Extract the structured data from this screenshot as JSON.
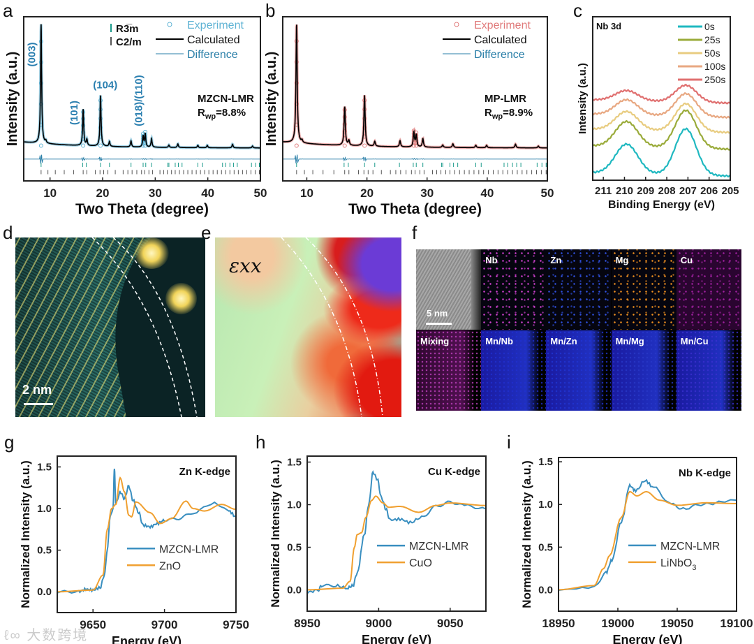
{
  "panel_letters": {
    "a": "a",
    "b": "b",
    "c": "c",
    "d": "d",
    "e": "e",
    "f": "f",
    "g": "g",
    "h": "h",
    "i": "i"
  },
  "colors": {
    "experiment_a": "#5fb3d4",
    "experiment_b": "#e07a7a",
    "calculated": "#000000",
    "difference": "#2a7fa8",
    "r3m_tick": "#1a9a8a",
    "c2m_tick": "#555555",
    "xas_sample": "#3a8fc0",
    "xas_ref": "#f0a030"
  },
  "panel_d": {
    "scale_label": "2 nm"
  },
  "panel_e": {
    "label": "εxx"
  },
  "panel_f": {
    "scale_label": "5 nm",
    "tiles": [
      {
        "label": ""
      },
      {
        "label": "Nb",
        "color": "#d040d0"
      },
      {
        "label": "Zn",
        "color": "#3050e0"
      },
      {
        "label": "Mg",
        "color": "#f09020"
      },
      {
        "label": "Cu",
        "color": "#a020a0"
      },
      {
        "label": "Mixing",
        "color": "#c040c0"
      },
      {
        "label": "Mn/Nb",
        "color": "#2030d0"
      },
      {
        "label": "Mn/Zn",
        "color": "#2035d5"
      },
      {
        "label": "Mn/Mg",
        "color": "#2838c8"
      },
      {
        "label": "Mn/Cu",
        "color": "#3a30d0"
      }
    ]
  },
  "watermark": "大数跨境",
  "chart_data": [
    {
      "panel": "a",
      "type": "line",
      "title": "",
      "xlabel": "Two Theta (degree)",
      "ylabel": "Intensity (a.u.)",
      "xlim": [
        5,
        50
      ],
      "ylim": [
        -0.26,
        1.09
      ],
      "xticks": [
        10,
        20,
        30,
        40,
        50
      ],
      "yticks": [],
      "legend": [
        {
          "label": "Experiment",
          "style": "circle"
        },
        {
          "label": "Calculated",
          "style": "line"
        },
        {
          "label": "Difference",
          "style": "thin"
        }
      ],
      "phase_legend": [
        {
          "label": "R3̅m"
        },
        {
          "label": "C2/m"
        }
      ],
      "sample_label": "MZCN-LMR",
      "rwp_label": "R",
      "rwp_sub": "wp",
      "rwp_value": "=8.8%",
      "peak_labels": [
        {
          "text": "(003)",
          "x": 7.2,
          "y": 0.78,
          "rot": true
        },
        {
          "text": "(101)",
          "x": 15.2,
          "y": 0.3,
          "rot": true
        },
        {
          "text": "(104)",
          "x": 20.5,
          "y": 0.5,
          "rot": false
        },
        {
          "text": "(018)/(110)",
          "x": 27.5,
          "y": 0.4,
          "rot": true
        }
      ],
      "background": 0.05,
      "peaks": [
        [
          8.3,
          0.98
        ],
        [
          9.2,
          0.02
        ],
        [
          16.3,
          0.3
        ],
        [
          17.0,
          0.05
        ],
        [
          19.6,
          0.42
        ],
        [
          21.3,
          0.04
        ],
        [
          25.4,
          0.05
        ],
        [
          27.7,
          0.09
        ],
        [
          28.1,
          0.11
        ],
        [
          29.3,
          0.07
        ],
        [
          32.6,
          0.02
        ],
        [
          34.3,
          0.03
        ],
        [
          38.1,
          0.02
        ],
        [
          39.9,
          0.02
        ],
        [
          44.7,
          0.03
        ],
        [
          48.5,
          0.015
        ]
      ],
      "difference_level": -0.08,
      "r3m_ticks": [
        8.3,
        16.2,
        16.9,
        19.6,
        21.3,
        25.4,
        27.7,
        28.2,
        29.3,
        32.4,
        32.6,
        33.8,
        34.4,
        35.1,
        38.1,
        39.0,
        42.8,
        43.4,
        44.2,
        44.9,
        45.6,
        48.3,
        49.1,
        49.8
      ],
      "c2m_ticks": [
        8.3,
        9.6,
        11.0,
        12.7,
        14.5,
        16.3,
        17.0,
        18.6,
        19.5,
        20.2,
        21.0,
        22.4,
        23.9,
        24.8,
        25.6,
        26.5,
        27.4,
        28.0,
        28.8,
        29.5,
        30.9,
        31.6,
        32.3,
        33.1,
        33.8,
        34.6,
        35.4,
        36.2,
        37.0,
        37.8,
        38.6,
        39.4,
        40.2,
        41.0,
        41.8,
        42.6,
        43.4,
        44.2,
        45.0,
        45.8,
        46.6,
        47.4,
        48.2,
        49.0,
        49.8
      ]
    },
    {
      "panel": "b",
      "type": "line",
      "title": "",
      "xlabel": "Two Theta (degree)",
      "ylabel": "Intensity (a.u.)",
      "xlim": [
        6,
        50
      ],
      "ylim": [
        -0.26,
        1.09
      ],
      "xticks": [
        10,
        20,
        30,
        40,
        50
      ],
      "yticks": [],
      "legend": [
        {
          "label": "Experiment",
          "style": "circle"
        },
        {
          "label": "Calculated",
          "style": "line"
        },
        {
          "label": "Difference",
          "style": "thin"
        }
      ],
      "sample_label": "MP-LMR",
      "rwp_label": "R",
      "rwp_sub": "wp",
      "rwp_value": "=8.9%",
      "background": 0.05,
      "peaks": [
        [
          8.3,
          0.98
        ],
        [
          9.2,
          0.02
        ],
        [
          16.3,
          0.32
        ],
        [
          17.0,
          0.04
        ],
        [
          19.6,
          0.42
        ],
        [
          21.3,
          0.04
        ],
        [
          25.5,
          0.05
        ],
        [
          27.8,
          0.12
        ],
        [
          28.2,
          0.1
        ],
        [
          29.3,
          0.07
        ],
        [
          32.6,
          0.02
        ],
        [
          34.3,
          0.03
        ],
        [
          38.1,
          0.02
        ],
        [
          39.9,
          0.02
        ],
        [
          44.7,
          0.03
        ],
        [
          48.5,
          0.015
        ]
      ],
      "difference_level": -0.08,
      "r3m_ticks": [
        8.3,
        16.2,
        16.9,
        19.6,
        21.3,
        25.4,
        27.7,
        28.2,
        29.3,
        32.4,
        32.6,
        33.8,
        34.4,
        35.1,
        38.1,
        39.0,
        42.8,
        43.4,
        44.2,
        44.9,
        45.6,
        48.3,
        49.1,
        49.8
      ],
      "c2m_ticks": [
        8.3,
        9.6,
        11.0,
        12.7,
        14.5,
        16.3,
        17.0,
        18.6,
        19.5,
        20.2,
        21.0,
        22.4,
        23.9,
        24.8,
        25.6,
        26.5,
        27.4,
        28.0,
        28.8,
        29.5,
        30.9,
        31.6,
        32.3,
        33.1,
        33.8,
        34.6,
        35.4,
        36.2,
        37.0,
        37.8,
        38.6,
        39.4,
        40.2,
        41.0,
        41.8,
        42.6,
        43.4,
        44.2,
        45.0,
        45.8,
        46.6,
        47.4,
        48.2,
        49.0,
        49.8
      ]
    },
    {
      "panel": "c",
      "type": "line",
      "title": "Nb 3d",
      "xlabel": "Binding Energy (eV)",
      "ylabel": "Intensity (a.u.)",
      "xlim": [
        211.5,
        205
      ],
      "ylim": [
        -0.05,
        1.9
      ],
      "xticks": [
        211,
        210,
        209,
        208,
        207,
        206,
        205
      ],
      "yticks": [],
      "peak_centers": [
        209.9,
        207.1
      ],
      "series": [
        {
          "name": "0s",
          "color": "#1fb8c0",
          "offset": 0.0,
          "heights": [
            0.35,
            0.55
          ]
        },
        {
          "name": "25s",
          "color": "#9aab3a",
          "offset": 0.32,
          "heights": [
            0.3,
            0.45
          ]
        },
        {
          "name": "50s",
          "color": "#e8cc80",
          "offset": 0.52,
          "heights": [
            0.22,
            0.33
          ]
        },
        {
          "name": "100s",
          "color": "#e8a882",
          "offset": 0.7,
          "heights": [
            0.18,
            0.27
          ]
        },
        {
          "name": "250s",
          "color": "#e07070",
          "offset": 0.87,
          "heights": [
            0.12,
            0.2
          ]
        }
      ]
    },
    {
      "panel": "g",
      "type": "line",
      "title": "Zn K-edge",
      "xlabel": "Energy (eV)",
      "ylabel": "Normalized Intensity (a.u.)",
      "xlim": [
        9625,
        9750
      ],
      "ylim": [
        -0.25,
        1.63
      ],
      "xticks": [
        9650,
        9700,
        9750
      ],
      "yticks": [
        0.0,
        0.5,
        1.0,
        1.5
      ],
      "series": [
        {
          "name": "MZCN-LMR",
          "color": "#3a8fc0",
          "points": [
            [
              9625,
              0
            ],
            [
              9640,
              0
            ],
            [
              9645,
              0.03
            ],
            [
              9650,
              0.02
            ],
            [
              9655,
              0.05
            ],
            [
              9658,
              0.2
            ],
            [
              9660,
              0.5
            ],
            [
              9662,
              0.9
            ],
            [
              9664,
              1.0
            ],
            [
              9665,
              1.48
            ],
            [
              9666,
              1.05
            ],
            [
              9668,
              1.15
            ],
            [
              9669,
              1.2
            ],
            [
              9672,
              1.12
            ],
            [
              9675,
              1.27
            ],
            [
              9678,
              1.1
            ],
            [
              9682,
              0.95
            ],
            [
              9685,
              0.8
            ],
            [
              9690,
              0.78
            ],
            [
              9695,
              0.82
            ],
            [
              9700,
              0.86
            ],
            [
              9710,
              0.88
            ],
            [
              9720,
              0.95
            ],
            [
              9735,
              1.07
            ],
            [
              9745,
              0.97
            ],
            [
              9750,
              0.9
            ]
          ]
        },
        {
          "name": "ZnO",
          "color": "#f0a030",
          "points": [
            [
              9625,
              0
            ],
            [
              9650,
              0.02
            ],
            [
              9657,
              0.2
            ],
            [
              9660,
              0.75
            ],
            [
              9663,
              1.0
            ],
            [
              9666,
              1.05
            ],
            [
              9669,
              1.37
            ],
            [
              9672,
              1.2
            ],
            [
              9675,
              0.92
            ],
            [
              9677,
              0.9
            ],
            [
              9680,
              1.08
            ],
            [
              9690,
              0.95
            ],
            [
              9697,
              0.82
            ],
            [
              9705,
              0.88
            ],
            [
              9715,
              1.09
            ],
            [
              9720,
              1.0
            ],
            [
              9728,
              0.97
            ],
            [
              9740,
              1.05
            ],
            [
              9750,
              0.99
            ]
          ]
        }
      ]
    },
    {
      "panel": "h",
      "type": "line",
      "title": "Cu K-edge",
      "xlabel": "Energy (eV)",
      "ylabel": "Normalized Intensity (a.u.)",
      "xlim": [
        8950,
        9075
      ],
      "ylim": [
        -0.25,
        1.57
      ],
      "xticks": [
        8950,
        9000,
        9050
      ],
      "yticks": [
        0.0,
        0.5,
        1.0,
        1.5
      ],
      "series": [
        {
          "name": "MZCN-LMR",
          "color": "#3a8fc0",
          "points": [
            [
              8950,
              -0.03
            ],
            [
              8958,
              0
            ],
            [
              8960,
              0.05
            ],
            [
              8970,
              0.05
            ],
            [
              8978,
              0.02
            ],
            [
              8982,
              0.05
            ],
            [
              8985,
              0.2
            ],
            [
              8990,
              0.65
            ],
            [
              8993,
              1.0
            ],
            [
              8996,
              1.38
            ],
            [
              8999,
              1.3
            ],
            [
              9002,
              1.08
            ],
            [
              9005,
              0.95
            ],
            [
              9008,
              0.82
            ],
            [
              9015,
              0.83
            ],
            [
              9022,
              0.79
            ],
            [
              9030,
              0.85
            ],
            [
              9040,
              0.98
            ],
            [
              9050,
              1.03
            ],
            [
              9060,
              0.99
            ],
            [
              9075,
              0.95
            ]
          ]
        },
        {
          "name": "CuO",
          "color": "#f0a030",
          "points": [
            [
              8950,
              0
            ],
            [
              8975,
              0.02
            ],
            [
              8980,
              0.1
            ],
            [
              8983,
              0.5
            ],
            [
              8985,
              0.65
            ],
            [
              8988,
              0.67
            ],
            [
              8991,
              0.85
            ],
            [
              8995,
              1.05
            ],
            [
              8998,
              1.1
            ],
            [
              9003,
              1.02
            ],
            [
              9007,
              0.97
            ],
            [
              9015,
              0.98
            ],
            [
              9028,
              0.91
            ],
            [
              9040,
              0.99
            ],
            [
              9050,
              1.02
            ],
            [
              9075,
              0.99
            ]
          ]
        }
      ]
    },
    {
      "panel": "i",
      "type": "line",
      "title": "Nb K-edge",
      "xlabel": "Energy (eV)",
      "ylabel": "Normalized Intensity (a.u.)",
      "xlim": [
        18950,
        19100
      ],
      "ylim": [
        -0.25,
        1.55
      ],
      "xticks": [
        18950,
        19000,
        19050,
        19100
      ],
      "yticks": [
        0.0,
        0.5,
        1.0,
        1.5
      ],
      "series": [
        {
          "name": "MZCN-LMR",
          "color": "#3a8fc0",
          "points": [
            [
              18950,
              0
            ],
            [
              18980,
              0.03
            ],
            [
              18990,
              0.2
            ],
            [
              18995,
              0.35
            ],
            [
              19003,
              0.8
            ],
            [
              19010,
              1.22
            ],
            [
              19015,
              1.16
            ],
            [
              19023,
              1.28
            ],
            [
              19030,
              1.2
            ],
            [
              19045,
              1.0
            ],
            [
              19055,
              0.95
            ],
            [
              19070,
              1.0
            ],
            [
              19100,
              1.05
            ]
          ]
        },
        {
          "name": "LiNbO",
          "sub": "3",
          "color": "#f0a030",
          "points": [
            [
              18950,
              0
            ],
            [
              18980,
              0.05
            ],
            [
              18988,
              0.25
            ],
            [
              18993,
              0.4
            ],
            [
              19003,
              0.85
            ],
            [
              19010,
              1.15
            ],
            [
              19016,
              1.1
            ],
            [
              19024,
              1.15
            ],
            [
              19035,
              1.05
            ],
            [
              19050,
              0.99
            ],
            [
              19075,
              1.02
            ],
            [
              19100,
              1.01
            ]
          ]
        }
      ]
    }
  ]
}
